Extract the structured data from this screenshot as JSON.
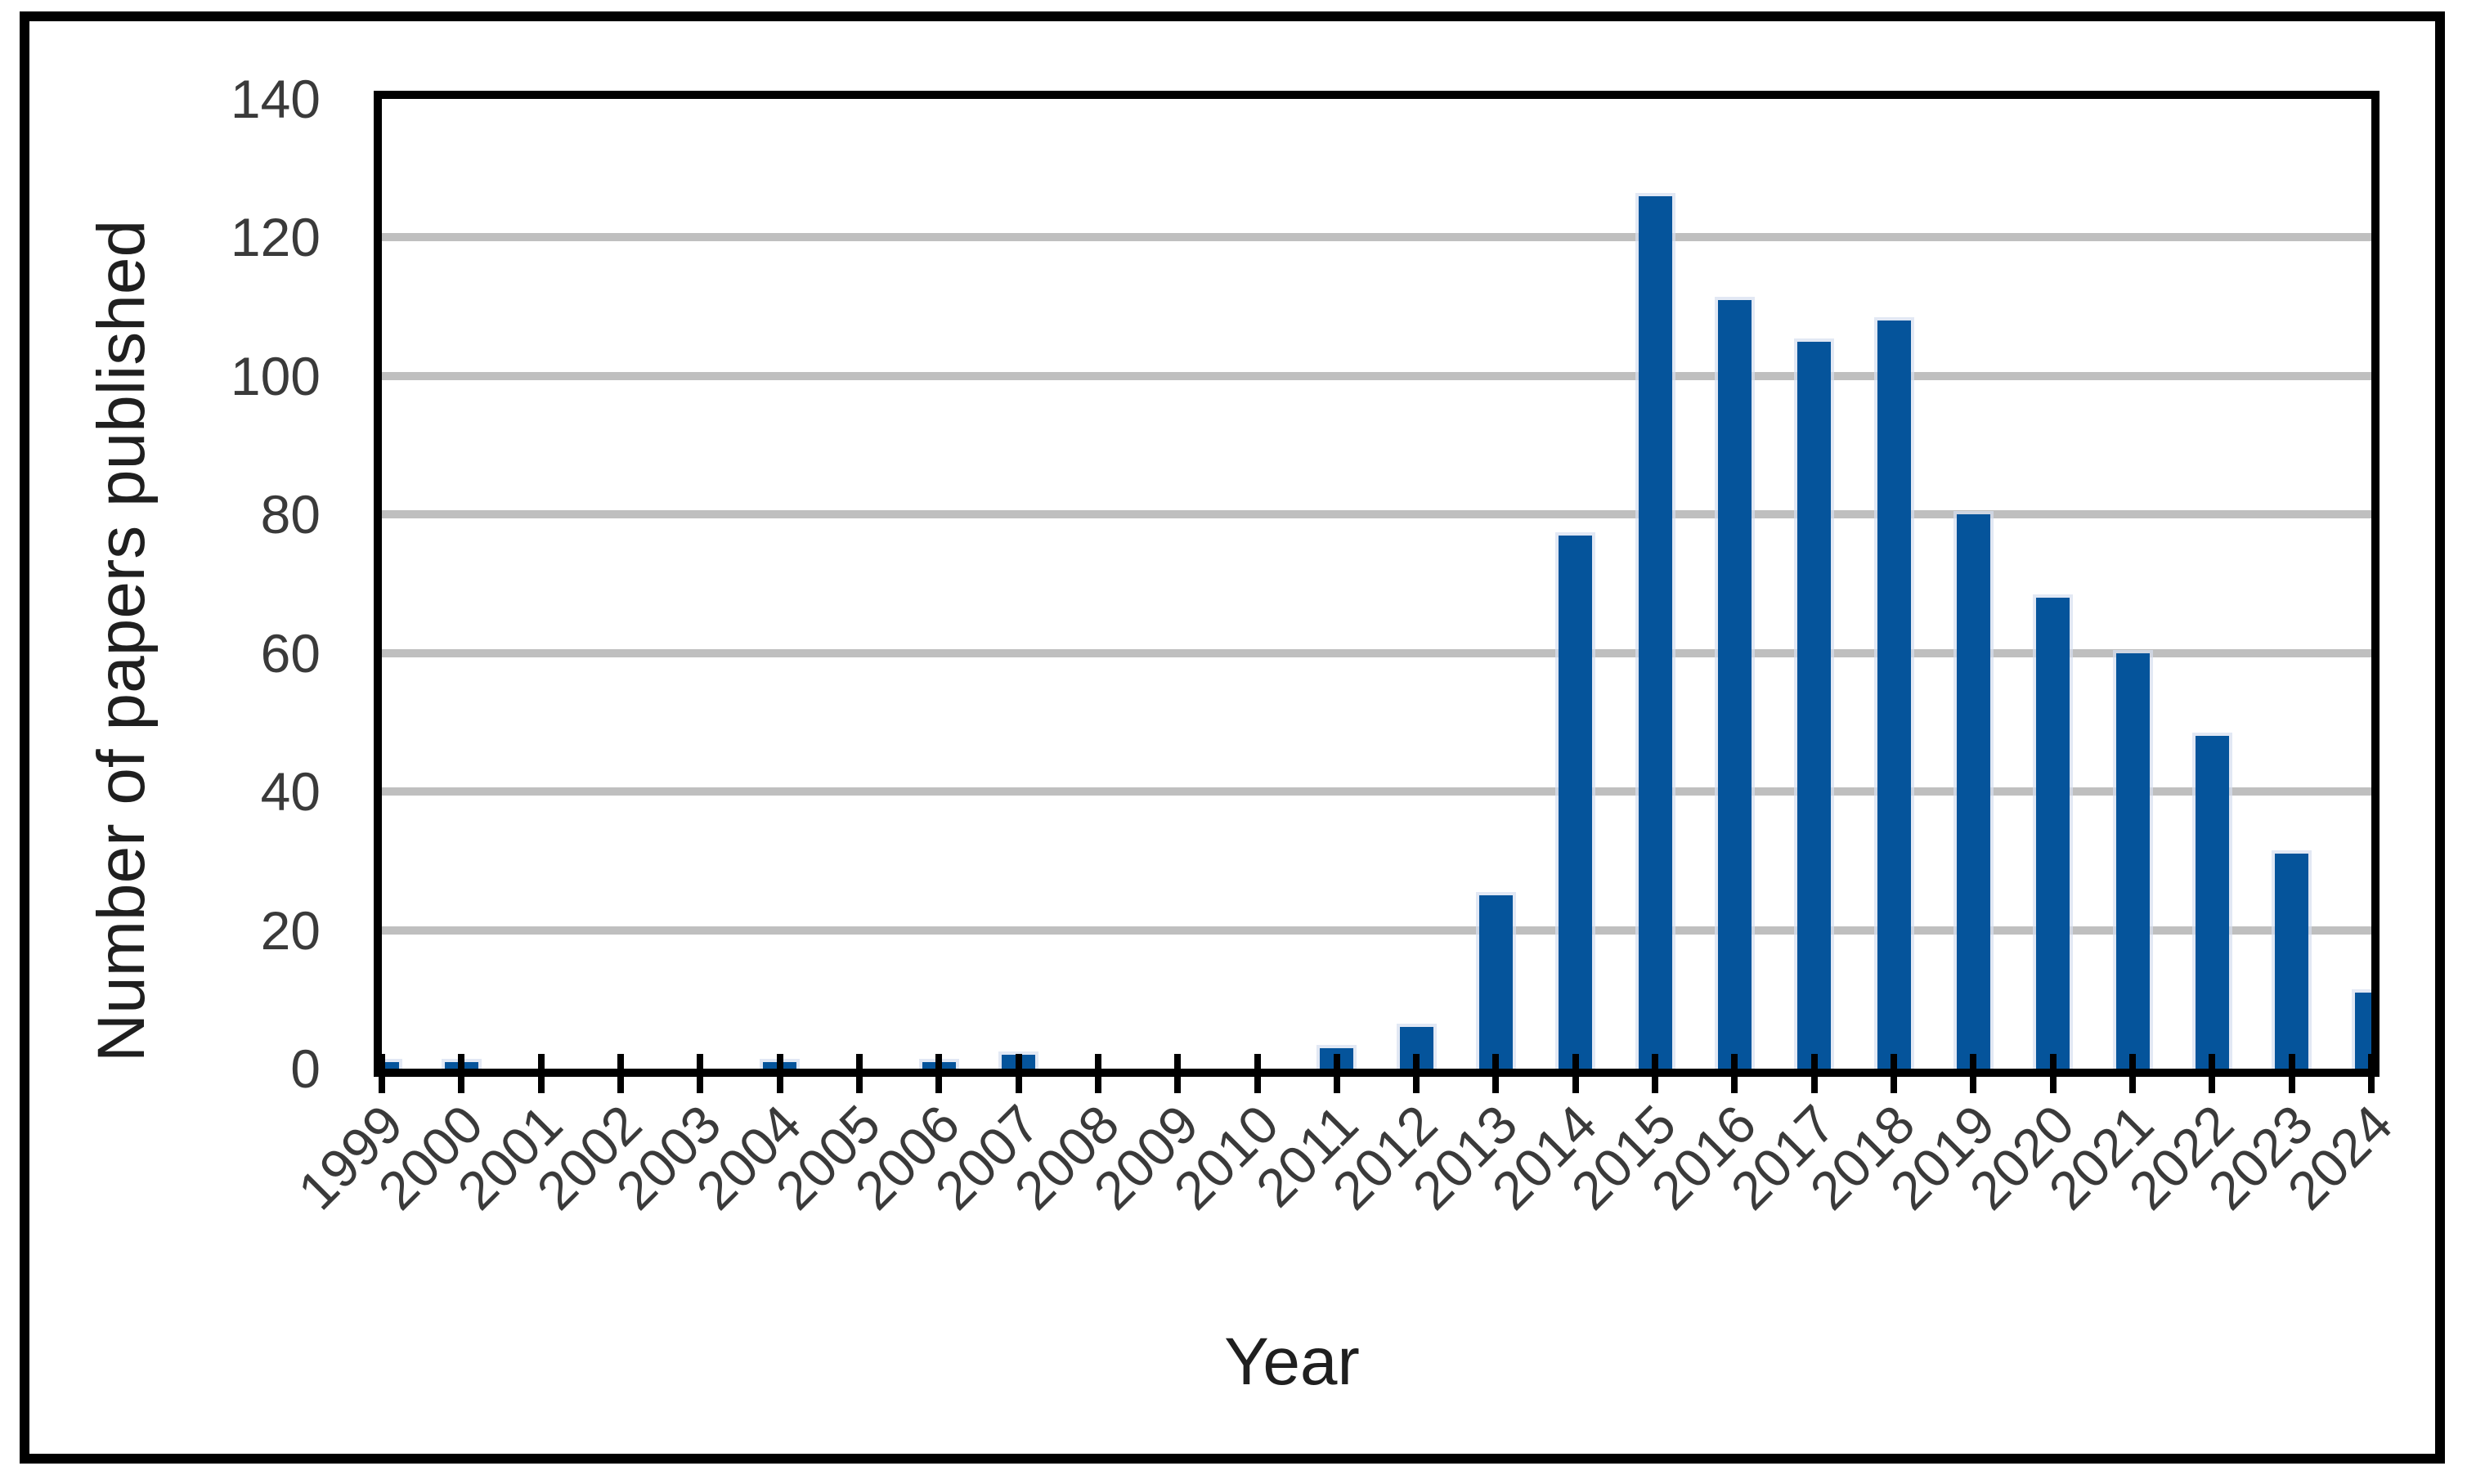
{
  "chart_data": {
    "type": "bar",
    "title": "",
    "xlabel": "Year",
    "ylabel": "Number of papers published",
    "categories": [
      "1999",
      "2000",
      "2001",
      "2002",
      "2003",
      "2004",
      "2005",
      "2006",
      "2007",
      "2008",
      "2009",
      "2010",
      "2011",
      "2012",
      "2013",
      "2014",
      "2015",
      "2016",
      "2017",
      "2018",
      "2019",
      "2020",
      "2021",
      "2022",
      "2023",
      "2024"
    ],
    "values": [
      1,
      1,
      0,
      0,
      0,
      1,
      0,
      1,
      2,
      0,
      0,
      0,
      3,
      6,
      25,
      77,
      126,
      111,
      105,
      108,
      80,
      68,
      60,
      48,
      31,
      11
    ],
    "ylim": [
      0,
      140
    ],
    "yticks": [
      0,
      20,
      40,
      60,
      80,
      100,
      120,
      140
    ],
    "gridline_values": [
      20,
      40,
      60,
      80,
      100,
      120
    ],
    "grid": true,
    "legend": "none",
    "x_tick_rotation_deg": 45,
    "bar_color": "#05549B",
    "bar_edge_color": "#D6DEF0",
    "gridline_color": "#BFBFBF",
    "axis_color": "#000000",
    "tick_label_color": "#3A3A3A",
    "background_color": "#FFFFFF"
  }
}
